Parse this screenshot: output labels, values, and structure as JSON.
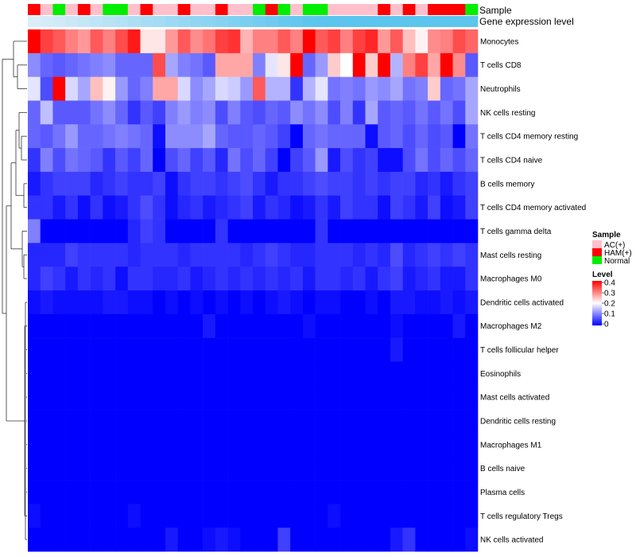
{
  "chart_data": {
    "type": "heatmap",
    "title": "",
    "n_samples": 36,
    "sample_annotation_label": "Sample",
    "gene_annotation_label": "Gene expression level",
    "sample_groups": [
      "AC(+)",
      "HAM(+)",
      "Normal"
    ],
    "sample_colors": {
      "AC(+)": "#ffc0cb",
      "HAM(+)": "#ff0000",
      "Normal": "#00ee00"
    },
    "samples": [
      "HAM(+)",
      "AC(+)",
      "Normal",
      "AC(+)",
      "HAM(+)",
      "AC(+)",
      "Normal",
      "Normal",
      "AC(+)",
      "HAM(+)",
      "AC(+)",
      "AC(+)",
      "HAM(+)",
      "AC(+)",
      "AC(+)",
      "HAM(+)",
      "AC(+)",
      "AC(+)",
      "Normal",
      "HAM(+)",
      "Normal",
      "AC(+)",
      "Normal",
      "Normal",
      "AC(+)",
      "AC(+)",
      "AC(+)",
      "AC(+)",
      "HAM(+)",
      "AC(+)",
      "HAM(+)",
      "AC(+)",
      "HAM(+)",
      "HAM(+)",
      "HAM(+)",
      "Normal"
    ],
    "gene_expression_gradient": [
      "#dbeef8",
      "#5bc5ee"
    ],
    "rows": [
      {
        "label": "Monocytes",
        "values": [
          0.4,
          0.35,
          0.33,
          0.3,
          0.28,
          0.33,
          0.3,
          0.34,
          0.38,
          0.22,
          0.22,
          0.28,
          0.33,
          0.29,
          0.31,
          0.35,
          0.36,
          0.26,
          0.3,
          0.3,
          0.33,
          0.3,
          0.42,
          0.33,
          0.35,
          0.3,
          0.35,
          0.37,
          0.28,
          0.33,
          0.25,
          0.21,
          0.29,
          0.3,
          0.34,
          0.32
        ]
      },
      {
        "label": "T cells CD8",
        "values": [
          0.11,
          0.08,
          0.07,
          0.08,
          0.09,
          0.1,
          0.11,
          0.08,
          0.08,
          0.08,
          0.34,
          0.13,
          0.1,
          0.09,
          0.07,
          0.27,
          0.27,
          0.27,
          0.1,
          0.18,
          0.22,
          0.4,
          0.08,
          0.12,
          0.24,
          0.2,
          0.4,
          0.24,
          0.42,
          0.14,
          0.3,
          0.35,
          0.27,
          0.42,
          0.29,
          0.07
        ]
      },
      {
        "label": "Neutrophils",
        "values": [
          0.18,
          0.06,
          0.4,
          0.17,
          0.13,
          0.25,
          0.21,
          0.12,
          0.08,
          0.1,
          0.27,
          0.27,
          0.17,
          0.11,
          0.13,
          0.17,
          0.16,
          0.12,
          0.33,
          0.14,
          0.14,
          0.04,
          0.14,
          0.18,
          0.09,
          0.1,
          0.09,
          0.12,
          0.11,
          0.13,
          0.09,
          0.1,
          0.24,
          0.08,
          0.09,
          0.13
        ]
      },
      {
        "label": "NK cells resting",
        "values": [
          0.08,
          0.15,
          0.07,
          0.07,
          0.07,
          0.09,
          0.11,
          0.08,
          0.04,
          0.07,
          0.05,
          0.1,
          0.12,
          0.1,
          0.11,
          0.06,
          0.1,
          0.07,
          0.06,
          0.08,
          0.07,
          0.11,
          0.09,
          0.11,
          0.06,
          0.1,
          0.04,
          0.13,
          0.07,
          0.08,
          0.07,
          0.09,
          0.07,
          0.09,
          0.06,
          0.13
        ]
      },
      {
        "label": "T cells CD4 memory resting",
        "values": [
          0.08,
          0.07,
          0.09,
          0.12,
          0.08,
          0.08,
          0.09,
          0.1,
          0.09,
          0.08,
          0.01,
          0.11,
          0.11,
          0.11,
          0.13,
          0.08,
          0.07,
          0.07,
          0.08,
          0.07,
          0.05,
          0.0,
          0.08,
          0.09,
          0.08,
          0.08,
          0.08,
          0.01,
          0.07,
          0.08,
          0.06,
          0.08,
          0.06,
          0.07,
          0.0,
          0.09
        ]
      },
      {
        "label": "T cells CD4 naive",
        "values": [
          0.04,
          0.1,
          0.06,
          0.09,
          0.08,
          0.07,
          0.04,
          0.07,
          0.05,
          0.08,
          0.0,
          0.06,
          0.08,
          0.05,
          0.07,
          0.03,
          0.09,
          0.06,
          0.08,
          0.05,
          0.0,
          0.05,
          0.07,
          0.12,
          0.02,
          0.06,
          0.04,
          0.05,
          0.01,
          0.01,
          0.06,
          0.09,
          0.06,
          0.08,
          0.06,
          0.08
        ]
      },
      {
        "label": "B cells memory",
        "values": [
          0.02,
          0.04,
          0.05,
          0.05,
          0.05,
          0.03,
          0.04,
          0.05,
          0.04,
          0.04,
          0.05,
          0.01,
          0.04,
          0.05,
          0.05,
          0.04,
          0.05,
          0.06,
          0.04,
          0.02,
          0.04,
          0.04,
          0.05,
          0.06,
          0.05,
          0.05,
          0.04,
          0.05,
          0.04,
          0.05,
          0.05,
          0.03,
          0.04,
          0.02,
          0.04,
          0.05
        ]
      },
      {
        "label": "T cells CD4 memory activated",
        "values": [
          0.04,
          0.04,
          0.02,
          0.04,
          0.01,
          0.04,
          0.01,
          0.02,
          0.04,
          0.06,
          0.04,
          0.01,
          0.03,
          0.04,
          0.02,
          0.03,
          0.04,
          0.05,
          0.02,
          0.04,
          0.03,
          0.01,
          0.02,
          0.04,
          0.02,
          0.05,
          0.04,
          0.04,
          0.01,
          0.05,
          0.04,
          0.02,
          0.05,
          0.01,
          0.02,
          0.05
        ]
      },
      {
        "label": "T cells gamma delta",
        "values": [
          0.1,
          0.0,
          0.0,
          0.0,
          0.0,
          0.0,
          0.0,
          0.0,
          0.03,
          0.05,
          0.04,
          0.0,
          0.0,
          0.0,
          0.0,
          0.04,
          0.0,
          0.0,
          0.0,
          0.0,
          0.0,
          0.0,
          0.0,
          0.04,
          0.0,
          0.0,
          0.0,
          0.0,
          0.0,
          0.0,
          0.0,
          0.0,
          0.0,
          0.0,
          0.0,
          0.0
        ]
      },
      {
        "label": "Mast cells resting",
        "values": [
          0.03,
          0.03,
          0.03,
          0.05,
          0.04,
          0.04,
          0.04,
          0.04,
          0.03,
          0.04,
          0.04,
          0.04,
          0.03,
          0.04,
          0.04,
          0.04,
          0.04,
          0.03,
          0.04,
          0.05,
          0.04,
          0.03,
          0.03,
          0.04,
          0.04,
          0.04,
          0.03,
          0.04,
          0.03,
          0.06,
          0.03,
          0.04,
          0.05,
          0.04,
          0.05,
          0.04
        ]
      },
      {
        "label": "Macrophages M0",
        "values": [
          0.03,
          0.05,
          0.04,
          0.02,
          0.04,
          0.03,
          0.04,
          0.01,
          0.04,
          0.04,
          0.03,
          0.03,
          0.04,
          0.02,
          0.03,
          0.04,
          0.03,
          0.04,
          0.03,
          0.04,
          0.03,
          0.04,
          0.02,
          0.04,
          0.04,
          0.03,
          0.04,
          0.02,
          0.04,
          0.05,
          0.02,
          0.03,
          0.04,
          0.02,
          0.02,
          0.04
        ]
      },
      {
        "label": "Dendritic cells activated",
        "values": [
          0.01,
          0.02,
          0.01,
          0.01,
          0.01,
          0.01,
          0.02,
          0.02,
          0.01,
          0.01,
          0.0,
          0.01,
          0.0,
          0.01,
          0.0,
          0.01,
          0.0,
          0.01,
          0.0,
          0.01,
          0.02,
          0.01,
          0.0,
          0.01,
          0.01,
          0.0,
          0.0,
          0.01,
          0.0,
          0.02,
          0.02,
          0.01,
          0.01,
          0.02,
          0.01,
          0.02
        ]
      },
      {
        "label": "Macrophages M2",
        "values": [
          0.0,
          0.0,
          0.0,
          0.0,
          0.0,
          0.0,
          0.0,
          0.0,
          0.0,
          0.0,
          0.0,
          0.0,
          0.0,
          0.0,
          0.02,
          0.0,
          0.0,
          0.0,
          0.0,
          0.0,
          0.0,
          0.0,
          0.01,
          0.0,
          0.0,
          0.0,
          0.0,
          0.0,
          0.0,
          0.01,
          0.0,
          0.0,
          0.0,
          0.0,
          0.02,
          0.0
        ]
      },
      {
        "label": "T cells follicular helper",
        "values": [
          0.0,
          0.0,
          0.0,
          0.0,
          0.0,
          0.0,
          0.0,
          0.0,
          0.0,
          0.0,
          0.0,
          0.0,
          0.0,
          0.0,
          0.0,
          0.0,
          0.0,
          0.0,
          0.0,
          0.0,
          0.0,
          0.0,
          0.0,
          0.0,
          0.0,
          0.0,
          0.0,
          0.0,
          0.0,
          0.02,
          0.0,
          0.0,
          0.0,
          0.0,
          0.0,
          0.0
        ]
      },
      {
        "label": "Eosinophils",
        "values": [
          0.0,
          0.0,
          0.0,
          0.0,
          0.0,
          0.0,
          0.0,
          0.0,
          0.0,
          0.0,
          0.0,
          0.0,
          0.0,
          0.0,
          0.0,
          0.0,
          0.0,
          0.0,
          0.0,
          0.0,
          0.0,
          0.0,
          0.0,
          0.0,
          0.0,
          0.0,
          0.0,
          0.0,
          0.0,
          0.0,
          0.0,
          0.0,
          0.0,
          0.0,
          0.0,
          0.0
        ]
      },
      {
        "label": "Mast cells activated",
        "values": [
          0.0,
          0.0,
          0.0,
          0.0,
          0.0,
          0.0,
          0.0,
          0.0,
          0.0,
          0.0,
          0.0,
          0.0,
          0.0,
          0.0,
          0.0,
          0.0,
          0.0,
          0.0,
          0.0,
          0.0,
          0.0,
          0.0,
          0.0,
          0.0,
          0.0,
          0.0,
          0.0,
          0.0,
          0.0,
          0.0,
          0.0,
          0.0,
          0.0,
          0.0,
          0.0,
          0.0
        ]
      },
      {
        "label": "Dendritic cells resting",
        "values": [
          0.0,
          0.0,
          0.0,
          0.0,
          0.0,
          0.0,
          0.0,
          0.0,
          0.0,
          0.0,
          0.0,
          0.0,
          0.0,
          0.0,
          0.0,
          0.0,
          0.0,
          0.0,
          0.0,
          0.0,
          0.0,
          0.0,
          0.0,
          0.0,
          0.0,
          0.0,
          0.0,
          0.0,
          0.0,
          0.0,
          0.0,
          0.0,
          0.0,
          0.0,
          0.0,
          0.0
        ]
      },
      {
        "label": "Macrophages M1",
        "values": [
          0.0,
          0.0,
          0.0,
          0.0,
          0.0,
          0.0,
          0.0,
          0.0,
          0.0,
          0.0,
          0.0,
          0.0,
          0.0,
          0.0,
          0.0,
          0.0,
          0.0,
          0.0,
          0.0,
          0.0,
          0.0,
          0.0,
          0.0,
          0.0,
          0.0,
          0.0,
          0.0,
          0.0,
          0.0,
          0.0,
          0.0,
          0.0,
          0.0,
          0.0,
          0.0,
          0.0
        ]
      },
      {
        "label": "B cells naive",
        "values": [
          0.0,
          0.0,
          0.0,
          0.0,
          0.0,
          0.0,
          0.0,
          0.0,
          0.0,
          0.0,
          0.0,
          0.0,
          0.0,
          0.0,
          0.0,
          0.0,
          0.0,
          0.0,
          0.0,
          0.0,
          0.0,
          0.0,
          0.0,
          0.0,
          0.0,
          0.0,
          0.0,
          0.0,
          0.0,
          0.0,
          0.0,
          0.0,
          0.0,
          0.0,
          0.0,
          0.0
        ]
      },
      {
        "label": "Plasma cells",
        "values": [
          0.0,
          0.0,
          0.0,
          0.0,
          0.0,
          0.0,
          0.0,
          0.0,
          0.0,
          0.0,
          0.0,
          0.0,
          0.0,
          0.0,
          0.0,
          0.0,
          0.0,
          0.0,
          0.0,
          0.0,
          0.0,
          0.0,
          0.0,
          0.0,
          0.0,
          0.0,
          0.0,
          0.0,
          0.0,
          0.0,
          0.0,
          0.0,
          0.0,
          0.0,
          0.0,
          0.0
        ]
      },
      {
        "label": "T cells regulatory  Tregs",
        "values": [
          0.01,
          0.0,
          0.0,
          0.0,
          0.0,
          0.0,
          0.0,
          0.0,
          0.01,
          0.0,
          0.0,
          0.0,
          0.0,
          0.0,
          0.0,
          0.0,
          0.0,
          0.0,
          0.0,
          0.0,
          0.0,
          0.0,
          0.0,
          0.0,
          0.01,
          0.0,
          0.0,
          0.0,
          0.0,
          0.0,
          0.0,
          0.0,
          0.0,
          0.0,
          0.0,
          0.0
        ]
      },
      {
        "label": "NK cells activated",
        "values": [
          0.0,
          0.0,
          0.0,
          0.0,
          0.0,
          0.0,
          0.0,
          0.0,
          0.0,
          0.0,
          0.0,
          0.02,
          0.0,
          0.0,
          0.01,
          0.02,
          0.01,
          0.0,
          0.0,
          0.0,
          0.05,
          0.0,
          0.0,
          0.0,
          0.0,
          0.0,
          0.0,
          0.0,
          0.0,
          0.02,
          0.04,
          0.0,
          0.0,
          0.0,
          0.0,
          0.01
        ]
      }
    ],
    "color_scale": {
      "min": 0,
      "max": 0.4,
      "low": "#0000ff",
      "mid": "#ffffff",
      "high": "#ff0000"
    },
    "legend": {
      "sample_title": "Sample",
      "level_title": "Level",
      "level_ticks": [
        "0.4",
        "0.3",
        "0.2",
        "0.1",
        "0"
      ]
    }
  }
}
